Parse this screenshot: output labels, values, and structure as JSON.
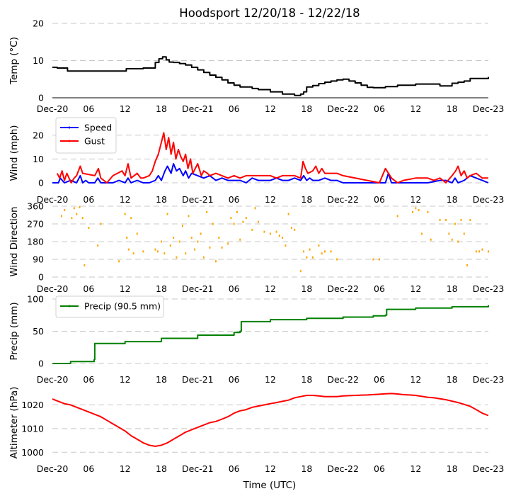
{
  "chart_data": {
    "type": "line",
    "title": "Hoodsport 12/20/18 - 12/22/18",
    "xlabel": "Time (UTC)",
    "x_unit": "hours since Dec-20 00:00 UTC",
    "xlim": [
      0,
      72
    ],
    "xticks": [
      {
        "x": 0,
        "label": "Dec-20"
      },
      {
        "x": 6,
        "label": "06"
      },
      {
        "x": 12,
        "label": "12"
      },
      {
        "x": 18,
        "label": "18"
      },
      {
        "x": 24,
        "label": "Dec-21"
      },
      {
        "x": 30,
        "label": "06"
      },
      {
        "x": 36,
        "label": "12"
      },
      {
        "x": 42,
        "label": "18"
      },
      {
        "x": 48,
        "label": "Dec-22"
      },
      {
        "x": 54,
        "label": "06"
      },
      {
        "x": 60,
        "label": "12"
      },
      {
        "x": 66,
        "label": "18"
      },
      {
        "x": 72,
        "label": "Dec-23"
      }
    ],
    "panels": [
      {
        "id": "temp",
        "ylabel": "Temp (°C)",
        "ylim": [
          0,
          20
        ],
        "yticks": [
          0,
          10,
          20
        ],
        "grid": true,
        "series": [
          {
            "name": "Temp",
            "color": "#000000",
            "style": "step",
            "x": [
              0,
              0.8,
              2.5,
              11.5,
              12.2,
              15,
              17,
              17.6,
              18.2,
              18.8,
              19.3,
              20,
              21,
              22,
              23,
              24,
              25,
              26,
              27,
              28,
              29,
              30,
              31,
              33,
              34,
              36,
              38,
              40,
              41,
              41.5,
              42,
              43,
              44,
              45,
              46,
              47,
              48,
              49,
              50,
              51,
              52,
              53,
              55,
              57,
              60,
              62,
              64,
              66,
              67,
              68,
              69,
              72
            ],
            "values": [
              8.2,
              8,
              7.2,
              7.2,
              7.8,
              8,
              9.5,
              10.5,
              11,
              10.2,
              9.6,
              9.5,
              9.2,
              8.8,
              8.2,
              7.5,
              6.8,
              6.1,
              5.5,
              4.8,
              4.0,
              3.4,
              2.9,
              2.5,
              2.2,
              1.6,
              1.0,
              0.6,
              1.0,
              1.6,
              2.9,
              3.3,
              3.8,
              4.2,
              4.5,
              4.8,
              5.0,
              4.5,
              4.0,
              3.4,
              2.8,
              2.7,
              3.0,
              3.4,
              3.7,
              3.7,
              3.2,
              3.9,
              4.2,
              4.5,
              5.2,
              5.6
            ]
          }
        ]
      },
      {
        "id": "wind",
        "ylabel": "Wind (mph)",
        "ylim": [
          0,
          25
        ],
        "yticks": [
          0,
          10,
          20
        ],
        "grid": true,
        "legend": "upper-left",
        "series": [
          {
            "name": "Speed",
            "color": "#0000ff",
            "x": [
              0,
              1,
              1.3,
              2,
              3,
              4,
              4.6,
              5,
              5.5,
              6,
              7,
              7.5,
              8,
              9,
              10,
              11,
              12,
              12.5,
              13,
              14,
              15,
              16,
              17,
              17.5,
              18,
              18.6,
              19,
              19.6,
              20,
              20.5,
              21,
              21.6,
              22,
              22.5,
              23,
              24,
              25,
              26,
              27,
              28,
              29,
              30,
              31,
              32,
              33,
              34,
              35,
              36,
              37,
              38,
              39,
              40,
              41,
              41.5,
              42,
              42.5,
              43,
              44,
              45,
              46,
              47,
              48,
              50,
              52,
              54,
              55,
              55.5,
              56,
              58,
              60,
              62,
              64,
              65,
              66,
              66.5,
              67,
              68,
              69,
              70,
              71,
              72
            ],
            "values": [
              0,
              0,
              2,
              0,
              1,
              0,
              3,
              0,
              1,
              0,
              0,
              2,
              0,
              0,
              0,
              1,
              0,
              2,
              0,
              1,
              0,
              0,
              1,
              3,
              1,
              5,
              7,
              4,
              8,
              5,
              6,
              3,
              5,
              2,
              4,
              3,
              2,
              3,
              1,
              2,
              1,
              1,
              1,
              0,
              2,
              1,
              1,
              1,
              2,
              1,
              1,
              2,
              1,
              3,
              1,
              2,
              1,
              1,
              2,
              1,
              1,
              0,
              0,
              0,
              0,
              0,
              4,
              0,
              0,
              0,
              0,
              1,
              1,
              0,
              2,
              0,
              1,
              3,
              2,
              1,
              0
            ]
          },
          {
            "name": "Gust",
            "color": "#ff0000",
            "x": [
              0.8,
              1.2,
              1.6,
              2,
              2.4,
              3.1,
              3.6,
              4,
              4.6,
              5,
              7,
              7.6,
              8,
              9,
              10,
              11.5,
              12,
              12.5,
              13,
              14,
              14.6,
              15,
              16,
              16.5,
              17,
              17.5,
              18,
              18.4,
              18.8,
              19.2,
              19.6,
              20,
              20.4,
              20.8,
              21.2,
              21.6,
              22,
              22.4,
              22.8,
              23.2,
              24,
              24.6,
              25,
              25.6,
              26,
              27,
              28,
              29,
              30,
              31,
              32,
              33,
              34,
              35,
              36,
              37,
              38,
              39,
              40,
              41,
              41.4,
              41.8,
              42.2,
              43,
              43.5,
              44,
              44.5,
              45,
              46,
              47,
              48,
              54,
              55,
              56,
              57,
              58,
              60,
              61,
              62,
              63,
              64,
              65,
              66,
              66.6,
              67,
              67.5,
              68,
              68.5,
              69,
              70,
              71,
              72
            ],
            "values": [
              4,
              2,
              5,
              1,
              4,
              0,
              2,
              3,
              7,
              4,
              3,
              6,
              2,
              0,
              3,
              5,
              3,
              8,
              2,
              4,
              2,
              2,
              3,
              5,
              9,
              12,
              17,
              21,
              14,
              19,
              12,
              17,
              10,
              14,
              11,
              9,
              12,
              6,
              10,
              4,
              8,
              3,
              5,
              4,
              3,
              4,
              3,
              2,
              3,
              2,
              3,
              3,
              3,
              3,
              3,
              2,
              3,
              3,
              3,
              2,
              9,
              6,
              4,
              5,
              7,
              4,
              6,
              4,
              4,
              4,
              3,
              0,
              6,
              2,
              0,
              1,
              2,
              2,
              2,
              1,
              2,
              0,
              3,
              5,
              7,
              3,
              5,
              2,
              3,
              4,
              2,
              2
            ]
          }
        ]
      },
      {
        "id": "wdir",
        "ylabel": "Wind Direction",
        "ylim": [
          0,
          360
        ],
        "yticks": [
          0,
          90,
          180,
          270,
          360
        ],
        "grid": true,
        "series": [
          {
            "name": "Wind Direction",
            "color": "#ffa500",
            "style": "scatter",
            "x": [
              1.5,
              2,
              3.2,
              3.6,
              4,
              4.5,
              5,
              5.3,
              6,
              7.5,
              8,
              11,
              12,
              12.3,
              12.6,
              13,
              13.4,
              14,
              15,
              17,
              17.4,
              18,
              18.5,
              19,
              19.5,
              20,
              20.5,
              21,
              21.5,
              22,
              22.5,
              23,
              23.5,
              24,
              24.5,
              25,
              25.5,
              26,
              26.5,
              27,
              27.5,
              28,
              29,
              29.5,
              30,
              30.5,
              31,
              31.5,
              32,
              33,
              33.5,
              34,
              35,
              36,
              37,
              37.5,
              38,
              38.5,
              39,
              39.5,
              40,
              41,
              41.5,
              42,
              42.5,
              43,
              44,
              44.5,
              45,
              46,
              47,
              53,
              54,
              57,
              59.5,
              60,
              60.5,
              61,
              62,
              62.5,
              64,
              65,
              65.5,
              66,
              66.5,
              67,
              67.5,
              68,
              68.5,
              69,
              70,
              70.5,
              71,
              72
            ],
            "values": [
              310,
              340,
              300,
              350,
              320,
              355,
              300,
              60,
              250,
              160,
              270,
              80,
              320,
              200,
              140,
              300,
              120,
              220,
              130,
              140,
              130,
              180,
              120,
              320,
              160,
              200,
              100,
              180,
              260,
              120,
              310,
              200,
              140,
              180,
              220,
              100,
              330,
              150,
              270,
              80,
              200,
              150,
              170,
              300,
              270,
              330,
              190,
              280,
              300,
              240,
              350,
              280,
              230,
              220,
              230,
              210,
              200,
              160,
              320,
              250,
              240,
              30,
              130,
              100,
              140,
              100,
              160,
              120,
              130,
              130,
              90,
              90,
              90,
              310,
              330,
              350,
              340,
              220,
              330,
              190,
              290,
              290,
              220,
              190,
              270,
              180,
              290,
              220,
              60,
              290,
              130,
              130,
              140,
              130
            ]
          }
        ]
      },
      {
        "id": "precip",
        "ylabel": "Precip (mm)",
        "ylim": [
          0,
          100
        ],
        "yticks": [
          0,
          50,
          100
        ],
        "grid": true,
        "legend": "upper-left",
        "series": [
          {
            "name": "Precip (90.5 mm)",
            "color": "#008000",
            "style": "step",
            "x": [
              0,
              3,
              6.9,
              7,
              12,
              18,
              24,
              30,
              31,
              31.2,
              36,
              42,
              48,
              53,
              55,
              55.2,
              60,
              66,
              72
            ],
            "values": [
              0,
              3,
              6,
              31,
              34,
              39,
              44,
              48,
              50,
              65,
              68,
              70,
              72,
              74,
              75,
              84,
              86,
              88,
              90.5
            ]
          }
        ]
      },
      {
        "id": "altim",
        "ylabel": "Altimeter (hPa)",
        "ylim": [
          998,
          1027
        ],
        "yticks": [
          1000,
          1010,
          1020
        ],
        "grid": true,
        "series": [
          {
            "name": "Altimeter",
            "color": "#ff0000",
            "x": [
              0,
              1,
              2,
              3,
              4,
              5,
              6,
              7,
              8,
              9,
              10,
              11,
              12,
              13,
              14,
              15,
              16,
              17,
              18,
              19,
              20,
              21,
              22,
              23,
              24,
              25,
              26,
              27,
              28,
              29,
              30,
              31,
              32,
              33,
              34,
              35,
              36,
              37,
              38,
              39,
              40,
              41,
              42,
              43,
              44,
              45,
              46,
              47,
              48,
              50,
              52,
              54,
              55,
              56,
              57,
              58,
              59,
              60,
              61,
              62,
              63,
              64,
              65,
              66,
              67,
              68,
              69,
              70,
              71,
              72
            ],
            "values": [
              1022.5,
              1021.5,
              1020.5,
              1020,
              1019,
              1018,
              1017,
              1016,
              1015,
              1013.5,
              1012,
              1010.5,
              1009,
              1007,
              1005.5,
              1004,
              1003,
              1002.5,
              1003,
              1004,
              1005.5,
              1007,
              1008.5,
              1009.5,
              1010.5,
              1011.5,
              1012.5,
              1013,
              1014,
              1015,
              1016.5,
              1017.5,
              1018,
              1019,
              1019.5,
              1020,
              1020.5,
              1021,
              1021.5,
              1022,
              1023,
              1023.5,
              1024,
              1024,
              1023.8,
              1023.5,
              1023.5,
              1023.5,
              1023.8,
              1024,
              1024.2,
              1024.5,
              1024.7,
              1024.8,
              1024.6,
              1024.3,
              1024.2,
              1024,
              1023.6,
              1023.2,
              1023,
              1022.6,
              1022.2,
              1021.6,
              1021,
              1020.2,
              1019.4,
              1018,
              1016.5,
              1015.5
            ]
          }
        ]
      }
    ]
  }
}
